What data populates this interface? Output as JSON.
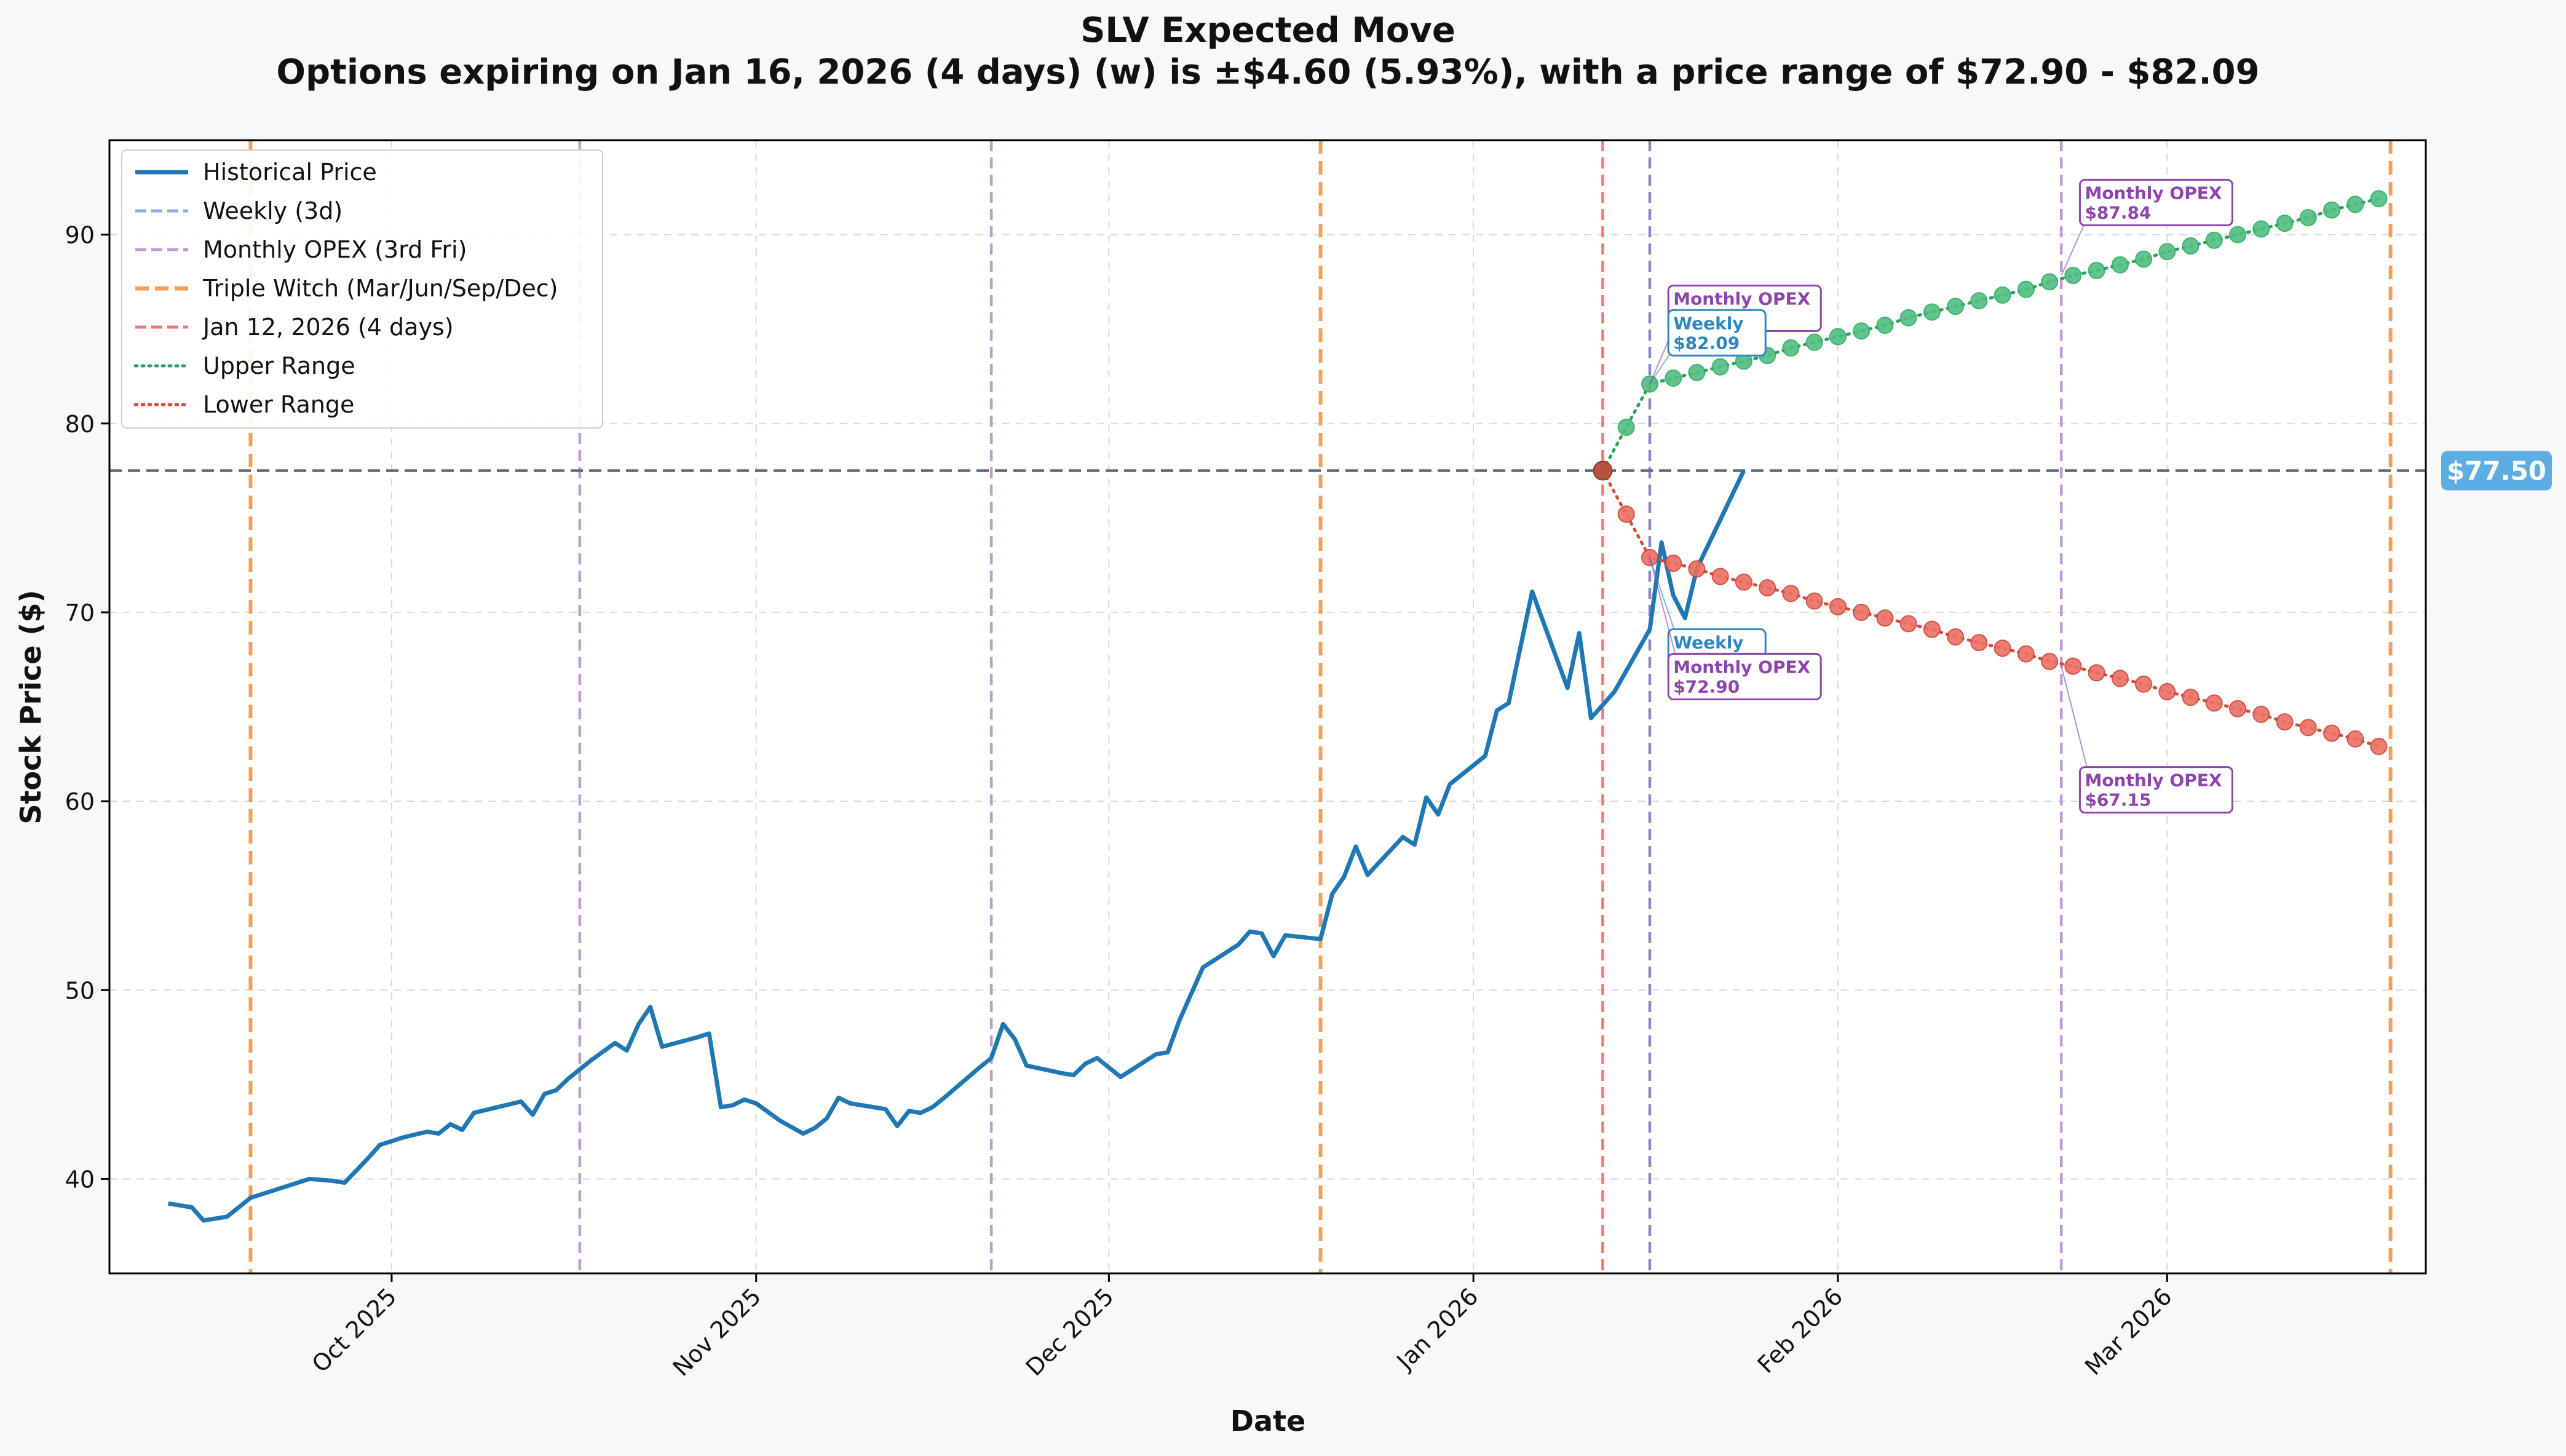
{
  "chart_data": {
    "type": "line",
    "title": "SLV Expected Move",
    "subtitle": "Options expiring on Jan 16, 2026 (4 days) (w) is ±$4.60 (5.93%), with a price range of $72.90 - $82.09",
    "xlabel": "Date",
    "ylabel": "Stock Price ($)",
    "ylim": [
      35,
      95
    ],
    "xlim": [
      "2025-09-07",
      "2026-03-23"
    ],
    "x_ticks": [
      {
        "date": "2025-10-01",
        "label": "Oct 2025"
      },
      {
        "date": "2025-11-01",
        "label": "Nov 2025"
      },
      {
        "date": "2025-12-01",
        "label": "Dec 2025"
      },
      {
        "date": "2026-01-01",
        "label": "Jan 2026"
      },
      {
        "date": "2026-02-01",
        "label": "Feb 2026"
      },
      {
        "date": "2026-03-01",
        "label": "Mar 2026"
      }
    ],
    "y_ticks": [
      40,
      50,
      60,
      70,
      80,
      90
    ],
    "grid": true,
    "legend_position": "top-left",
    "current_price_label": "$77.50",
    "current_price": 77.5,
    "colors": {
      "historical": "#1f77b4",
      "weekly": "#7fb2e5",
      "monthly": "#c39bd3",
      "triple_witch": "#f0a05a",
      "today": "#ee7b78",
      "upper": "#2ca05a",
      "upper_marker": "#52be80",
      "lower": "#d94a3d",
      "lower_marker": "#ec7063",
      "hline": "#5d6d7e",
      "weekly_ann": "#2e86c1",
      "monthly_ann": "#8e44ad",
      "price_badge": "#5dade2"
    },
    "legend": [
      {
        "label": "Historical Price",
        "style": "solid",
        "color_key": "historical"
      },
      {
        "label": "Weekly (3d)",
        "style": "dashed",
        "color_key": "weekly"
      },
      {
        "label": "Monthly OPEX (3rd Fri)",
        "style": "dashed",
        "color_key": "monthly"
      },
      {
        "label": "Triple Witch (Mar/Jun/Sep/Dec)",
        "style": "dashed-thick",
        "color_key": "triple_witch"
      },
      {
        "label": "Jan 12, 2026 (4 days)",
        "style": "dashed",
        "color_key": "today"
      },
      {
        "label": "Upper Range",
        "style": "dotted",
        "color_key": "upper"
      },
      {
        "label": "Lower Range",
        "style": "dotted",
        "color_key": "lower"
      }
    ],
    "vlines": [
      {
        "date": "2025-09-19",
        "kind": "triple_witch"
      },
      {
        "date": "2025-10-17",
        "kind": "monthly"
      },
      {
        "date": "2025-11-21",
        "kind": "monthly"
      },
      {
        "date": "2025-12-19",
        "kind": "triple_witch"
      },
      {
        "date": "2026-01-12",
        "kind": "today"
      },
      {
        "date": "2026-01-16",
        "kind": "weekly"
      },
      {
        "date": "2026-02-20",
        "kind": "monthly"
      },
      {
        "date": "2026-03-20",
        "kind": "triple_witch"
      }
    ],
    "series": [
      {
        "name": "Historical Price",
        "kind": "historical",
        "points": [
          [
            "2025-09-12",
            38.7
          ],
          [
            "2025-09-13",
            38.6
          ],
          [
            "2025-09-14",
            38.5
          ],
          [
            "2025-09-15",
            37.8
          ],
          [
            "2025-09-17",
            38.0
          ],
          [
            "2025-09-19",
            39.0
          ],
          [
            "2025-09-22",
            39.6
          ],
          [
            "2025-09-24",
            40.0
          ],
          [
            "2025-09-26",
            39.9
          ],
          [
            "2025-09-27",
            39.8
          ],
          [
            "2025-09-29",
            41.1
          ],
          [
            "2025-09-30",
            41.8
          ],
          [
            "2025-10-02",
            42.2
          ],
          [
            "2025-10-04",
            42.5
          ],
          [
            "2025-10-05",
            42.4
          ],
          [
            "2025-10-06",
            42.9
          ],
          [
            "2025-10-07",
            42.6
          ],
          [
            "2025-10-08",
            43.5
          ],
          [
            "2025-10-10",
            43.8
          ],
          [
            "2025-10-12",
            44.1
          ],
          [
            "2025-10-13",
            43.4
          ],
          [
            "2025-10-14",
            44.5
          ],
          [
            "2025-10-15",
            44.7
          ],
          [
            "2025-10-16",
            45.3
          ],
          [
            "2025-10-18",
            46.3
          ],
          [
            "2025-10-20",
            47.2
          ],
          [
            "2025-10-21",
            46.8
          ],
          [
            "2025-10-22",
            48.2
          ],
          [
            "2025-10-23",
            49.1
          ],
          [
            "2025-10-24",
            47.0
          ],
          [
            "2025-10-27",
            47.5
          ],
          [
            "2025-10-28",
            47.7
          ],
          [
            "2025-10-29",
            43.8
          ],
          [
            "2025-10-30",
            43.9
          ],
          [
            "2025-10-31",
            44.2
          ],
          [
            "2025-11-01",
            44.0
          ],
          [
            "2025-11-03",
            43.1
          ],
          [
            "2025-11-05",
            42.4
          ],
          [
            "2025-11-06",
            42.7
          ],
          [
            "2025-11-07",
            43.2
          ],
          [
            "2025-11-08",
            44.3
          ],
          [
            "2025-11-09",
            44.0
          ],
          [
            "2025-11-12",
            43.7
          ],
          [
            "2025-11-13",
            42.8
          ],
          [
            "2025-11-14",
            43.6
          ],
          [
            "2025-11-15",
            43.5
          ],
          [
            "2025-11-16",
            43.8
          ],
          [
            "2025-11-17",
            44.3
          ],
          [
            "2025-11-20",
            45.9
          ],
          [
            "2025-11-21",
            46.4
          ],
          [
            "2025-11-22",
            48.2
          ],
          [
            "2025-11-23",
            47.4
          ],
          [
            "2025-11-24",
            46.0
          ],
          [
            "2025-11-27",
            45.6
          ],
          [
            "2025-11-28",
            45.5
          ],
          [
            "2025-11-29",
            46.1
          ],
          [
            "2025-11-30",
            46.4
          ],
          [
            "2025-12-02",
            45.4
          ],
          [
            "2025-12-05",
            46.6
          ],
          [
            "2025-12-06",
            46.7
          ],
          [
            "2025-12-07",
            48.4
          ],
          [
            "2025-12-09",
            51.2
          ],
          [
            "2025-12-12",
            52.4
          ],
          [
            "2025-12-13",
            53.1
          ],
          [
            "2025-12-14",
            53.0
          ],
          [
            "2025-12-15",
            51.8
          ],
          [
            "2025-12-16",
            52.9
          ],
          [
            "2025-12-19",
            52.7
          ],
          [
            "2025-12-20",
            55.1
          ],
          [
            "2025-12-21",
            56.0
          ],
          [
            "2025-12-22",
            57.6
          ],
          [
            "2025-12-23",
            56.1
          ],
          [
            "2025-12-26",
            58.1
          ],
          [
            "2025-12-27",
            57.7
          ],
          [
            "2025-12-28",
            60.2
          ],
          [
            "2025-12-29",
            59.3
          ],
          [
            "2025-12-30",
            60.9
          ],
          [
            "2026-01-02",
            62.4
          ],
          [
            "2026-01-03",
            64.8
          ],
          [
            "2026-01-04",
            65.2
          ],
          [
            "2026-01-06",
            71.1
          ],
          [
            "2026-01-09",
            66.0
          ],
          [
            "2026-01-10",
            68.9
          ],
          [
            "2026-01-11",
            64.4
          ],
          [
            "2026-01-13",
            65.8
          ],
          [
            "2026-01-16",
            69.1
          ],
          [
            "2026-01-17",
            73.7
          ],
          [
            "2026-01-18",
            70.9
          ],
          [
            "2026-01-19",
            69.7
          ],
          [
            "2026-01-20",
            72.3
          ],
          [
            "2026-01-24",
            77.5
          ]
        ]
      },
      {
        "name": "Upper Range",
        "kind": "upper",
        "start": [
          "2026-01-12",
          77.5
        ],
        "x_start": "2026-01-14",
        "x_step_days": 2,
        "values": [
          79.8,
          82.09,
          82.4,
          82.7,
          83.0,
          83.3,
          83.6,
          84.0,
          84.3,
          84.6,
          84.9,
          85.2,
          85.6,
          85.9,
          86.2,
          86.5,
          86.8,
          87.1,
          87.5,
          87.84,
          88.1,
          88.4,
          88.7,
          89.1,
          89.4,
          89.7,
          90.0,
          90.3,
          90.6,
          90.9,
          91.3,
          91.6,
          91.9
        ]
      },
      {
        "name": "Lower Range",
        "kind": "lower",
        "start": [
          "2026-01-12",
          77.5
        ],
        "x_start": "2026-01-14",
        "x_step_days": 2,
        "values": [
          75.2,
          72.9,
          72.6,
          72.3,
          71.9,
          71.6,
          71.3,
          71.0,
          70.6,
          70.3,
          70.0,
          69.7,
          69.4,
          69.1,
          68.7,
          68.4,
          68.1,
          67.8,
          67.4,
          67.15,
          66.8,
          66.5,
          66.2,
          65.8,
          65.5,
          65.2,
          64.9,
          64.6,
          64.2,
          63.9,
          63.6,
          63.3,
          62.9
        ]
      }
    ],
    "annotations": [
      {
        "title": "Monthly OPEX",
        "value": "$82.09",
        "kind": "monthly",
        "anchor": [
          "2026-01-16",
          82.09
        ],
        "box_at": [
          "2026-01-18",
          86.1
        ]
      },
      {
        "title": "Weekly",
        "value": "$82.09",
        "kind": "weekly",
        "anchor": [
          "2026-01-16",
          82.09
        ],
        "box_at": [
          "2026-01-18",
          84.8
        ]
      },
      {
        "title": "Monthly OPEX",
        "value": "$87.84",
        "kind": "monthly",
        "anchor": [
          "2026-02-20",
          87.84
        ],
        "box_at": [
          "2026-02-22",
          91.7
        ]
      },
      {
        "title": "Weekly",
        "value": "$72.90",
        "kind": "weekly",
        "anchor": [
          "2026-01-16",
          72.9
        ],
        "box_at": [
          "2026-01-18",
          67.9
        ]
      },
      {
        "title": "Monthly OPEX",
        "value": "$72.90",
        "kind": "monthly",
        "anchor": [
          "2026-01-16",
          72.9
        ],
        "box_at": [
          "2026-01-18",
          66.6
        ]
      },
      {
        "title": "Monthly OPEX",
        "value": "$67.15",
        "kind": "monthly",
        "anchor": [
          "2026-02-20",
          67.15
        ],
        "box_at": [
          "2026-02-22",
          60.6
        ]
      }
    ]
  }
}
